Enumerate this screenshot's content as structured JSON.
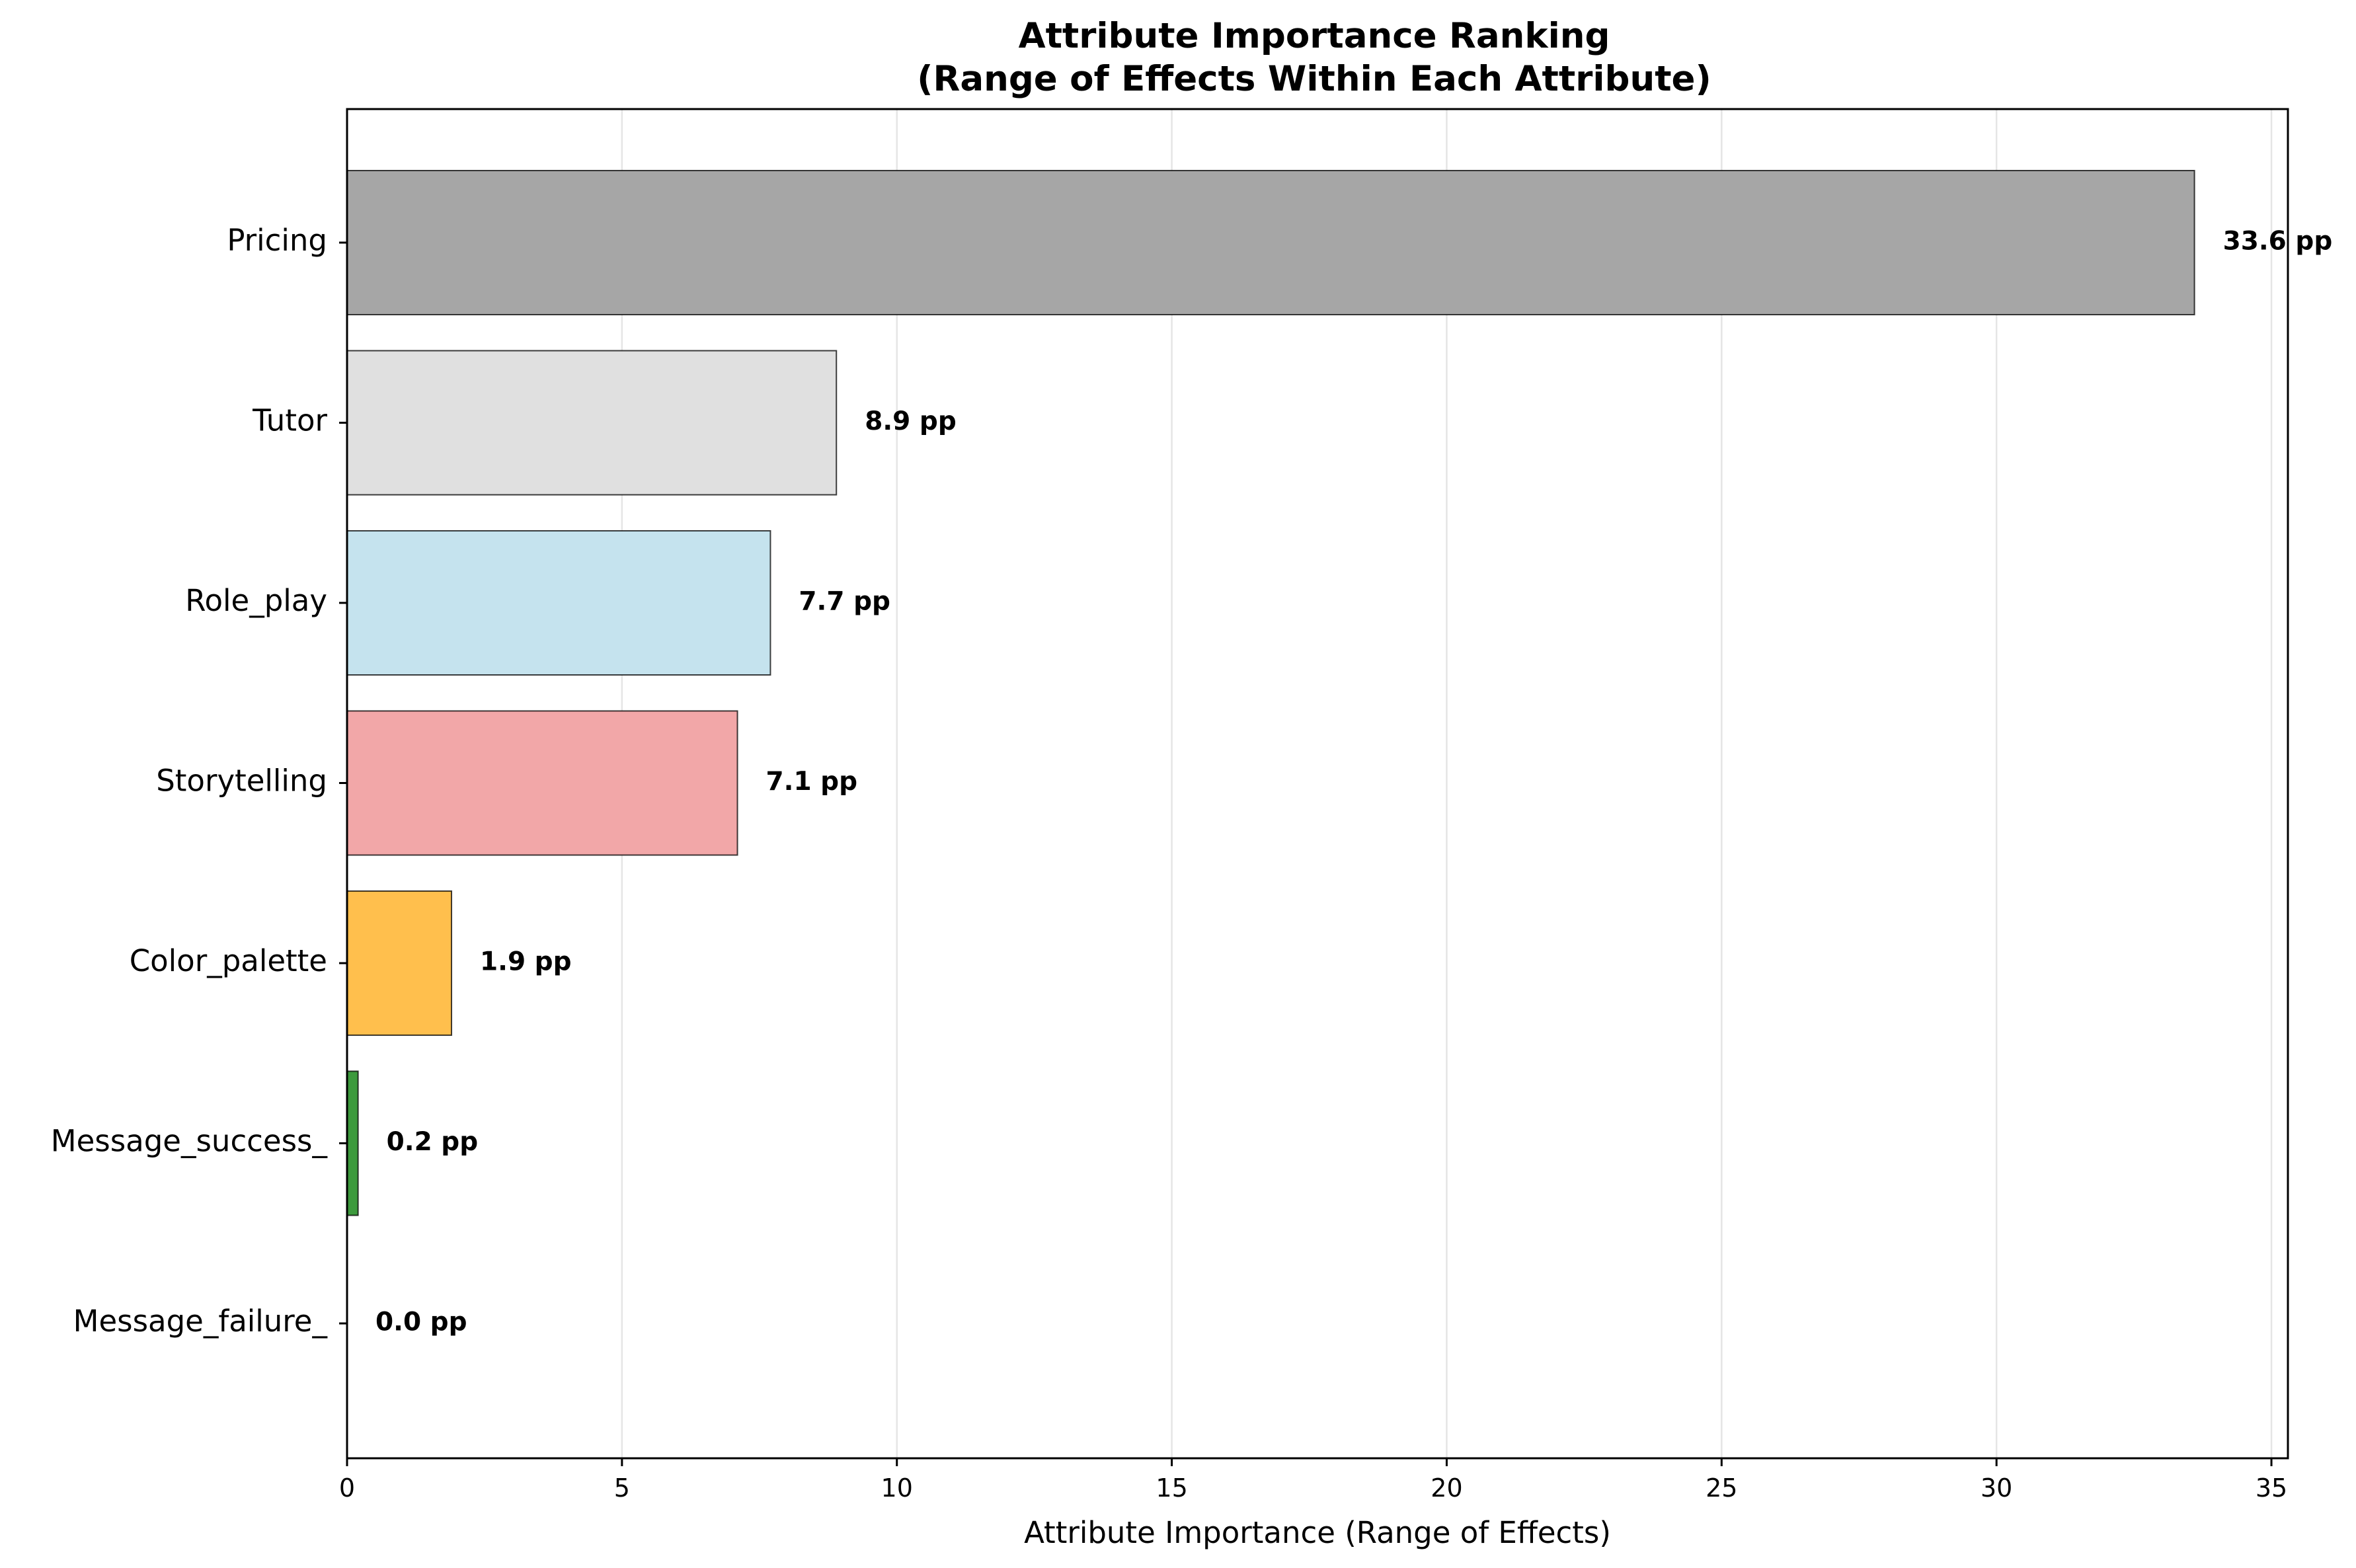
{
  "chart_data": {
    "type": "bar",
    "orientation": "horizontal",
    "title": "Attribute Importance Ranking",
    "subtitle": "(Range of Effects Within Each Attribute)",
    "xlabel": "Attribute Importance (Range of Effects)",
    "ylabel": "",
    "xlim": [
      0,
      35.3
    ],
    "xticks": [
      0,
      5,
      10,
      15,
      20,
      25,
      30,
      35
    ],
    "grid": "x",
    "categories": [
      "Pricing",
      "Tutor",
      "Role_play",
      "Storytelling",
      "Color_palette",
      "Message_success_",
      "Message_failure_"
    ],
    "values": [
      33.6,
      8.9,
      7.7,
      7.1,
      1.9,
      0.2,
      0.0
    ],
    "value_labels": [
      "33.6 pp",
      "8.9 pp",
      "7.7 pp",
      "7.1 pp",
      "1.9 pp",
      "0.2 pp",
      "0.0 pp"
    ],
    "colors": [
      "#a6a6a6",
      "#e0e0e0",
      "#c5e3ee",
      "#f2a7a8",
      "#ffbf4d",
      "#3d9a3d",
      "#ffffff"
    ]
  }
}
